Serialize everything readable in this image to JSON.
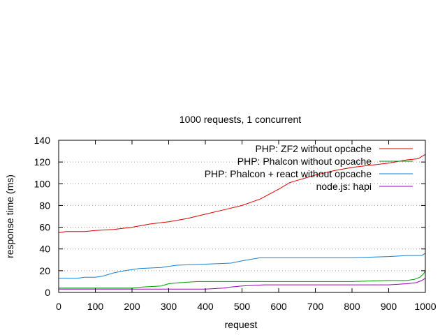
{
  "chart_data": {
    "type": "line",
    "title": "1000 requests, 1 concurrent",
    "xlabel": "request",
    "ylabel": "response time (ms)",
    "xlim": [
      0,
      1000
    ],
    "ylim": [
      0,
      140
    ],
    "xticks": [
      "0",
      "100",
      "200",
      "300",
      "400",
      "500",
      "600",
      "700",
      "800",
      "900",
      "1000"
    ],
    "yticks": [
      "0",
      "20",
      "40",
      "60",
      "80",
      "100",
      "120",
      "140"
    ],
    "grid": "horizontal dotted",
    "legend_position": "top-right",
    "series": [
      {
        "name": "PHP: ZF2 without opcache",
        "color": "#dd0000",
        "x": [
          0,
          20,
          70,
          100,
          150,
          200,
          250,
          300,
          350,
          400,
          450,
          500,
          550,
          600,
          630,
          700,
          750,
          800,
          850,
          900,
          950,
          980,
          1000
        ],
        "y": [
          55,
          56,
          56,
          57,
          58,
          60,
          63,
          65,
          68,
          72,
          76,
          80,
          86,
          95,
          101,
          108,
          112,
          115,
          117,
          119,
          122,
          123,
          127
        ]
      },
      {
        "name": "PHP: Phalcon without opcache",
        "color": "#009900",
        "x": [
          0,
          100,
          200,
          230,
          280,
          300,
          330,
          380,
          400,
          500,
          600,
          700,
          800,
          900,
          950,
          970,
          985,
          995,
          1000
        ],
        "y": [
          4,
          4,
          4,
          5,
          6,
          8,
          9,
          10,
          10,
          10,
          10,
          10,
          10,
          11,
          11,
          12,
          14,
          17,
          20
        ]
      },
      {
        "name": "PHP: Phalcon + react without opcache",
        "color": "#1a7fd0",
        "x": [
          0,
          50,
          70,
          100,
          120,
          150,
          180,
          200,
          220,
          280,
          320,
          400,
          470,
          500,
          550,
          600,
          700,
          800,
          900,
          950,
          990,
          1000
        ],
        "y": [
          13,
          13,
          14,
          14,
          15,
          18,
          20,
          21,
          22,
          23,
          25,
          26,
          27,
          29,
          32,
          32,
          32,
          32,
          33,
          34,
          34,
          36
        ]
      },
      {
        "name": "node.js: hapi",
        "color": "#9900bb",
        "x": [
          0,
          100,
          200,
          300,
          400,
          450,
          470,
          500,
          560,
          700,
          900,
          950,
          975,
          990,
          1000
        ],
        "y": [
          3,
          3,
          3,
          3,
          3,
          4,
          5,
          6,
          7,
          7,
          7,
          8,
          9,
          11,
          13
        ]
      }
    ]
  }
}
